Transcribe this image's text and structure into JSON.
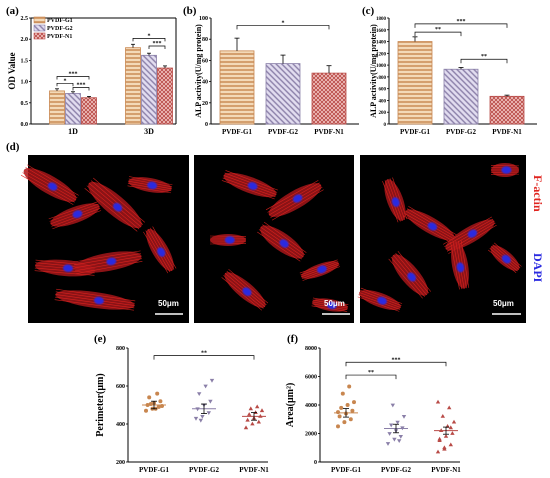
{
  "colors": {
    "g1": "#c8864f",
    "g2": "#8a7fa8",
    "n1": "#b84a46",
    "factin": "#e0241f",
    "dapi": "#2a2ae0"
  },
  "chart_data": [
    {
      "panel": "(a)",
      "type": "bar",
      "categories": [
        "1D",
        "3D"
      ],
      "series": [
        {
          "name": "PVDF-G1",
          "values": [
            0.78,
            1.8
          ],
          "errors": [
            0.05,
            0.08
          ]
        },
        {
          "name": "PVDF-G2",
          "values": [
            0.72,
            1.62
          ],
          "errors": [
            0.04,
            0.05
          ]
        },
        {
          "name": "PVDF-N1",
          "values": [
            0.62,
            1.32
          ],
          "errors": [
            0.03,
            0.05
          ]
        }
      ],
      "ylabel": "OD Value",
      "ylim": [
        0,
        2.5
      ],
      "yticks": [
        "0.0",
        "0.5",
        "1.0",
        "1.5",
        "2.0",
        "2.5"
      ],
      "legend": "top-left",
      "significance": [
        {
          "day": "1D",
          "pair": [
            "PVDF-G1",
            "PVDF-N1"
          ],
          "label": "***"
        },
        {
          "day": "1D",
          "pair": [
            "PVDF-G1",
            "PVDF-G2"
          ],
          "label": "*"
        },
        {
          "day": "1D",
          "pair": [
            "PVDF-G2",
            "PVDF-N1"
          ],
          "label": "***"
        },
        {
          "day": "3D",
          "pair": [
            "PVDF-G1",
            "PVDF-N1"
          ],
          "label": "*"
        },
        {
          "day": "3D",
          "pair": [
            "PVDF-G2",
            "PVDF-N1"
          ],
          "label": "***"
        }
      ]
    },
    {
      "panel": "(b)",
      "type": "bar",
      "categories": [
        "PVDF-G1",
        "PVDF-G2",
        "PVDF-N1"
      ],
      "values": [
        69,
        57,
        48
      ],
      "errors": [
        12,
        8,
        7
      ],
      "ylabel": "ALP activity(U/mg protein)",
      "ylim": [
        0,
        100
      ],
      "yticks": [
        "0",
        "20",
        "40",
        "60",
        "80",
        "100"
      ],
      "significance": [
        {
          "pair": [
            "PVDF-G1",
            "PVDF-N1"
          ],
          "label": "*"
        }
      ]
    },
    {
      "panel": "(c)",
      "type": "bar",
      "categories": [
        "PVDF-G1",
        "PVDF-G2",
        "PVDF-N1"
      ],
      "values": [
        1400,
        930,
        470
      ],
      "errors": [
        80,
        30,
        20
      ],
      "ylabel": "ALP activity(U/mg protein)",
      "ylim": [
        0,
        1800
      ],
      "yticks": [
        "0",
        "200",
        "400",
        "600",
        "800",
        "1000",
        "1200",
        "1400",
        "1600",
        "1800"
      ],
      "significance": [
        {
          "pair": [
            "PVDF-G1",
            "PVDF-N1"
          ],
          "label": "***"
        },
        {
          "pair": [
            "PVDF-G1",
            "PVDF-G2"
          ],
          "label": "**"
        },
        {
          "pair": [
            "PVDF-G2",
            "PVDF-N1"
          ],
          "label": "**"
        }
      ]
    },
    {
      "panel": "(e)",
      "type": "scatter",
      "categories": [
        "PVDF-G1",
        "PVDF-G2",
        "PVDF-N1"
      ],
      "means": [
        500,
        480,
        440
      ],
      "sem": [
        20,
        25,
        20
      ],
      "points": [
        [
          470,
          480,
          490,
          500,
          510,
          520,
          540,
          480,
          495,
          505,
          560
        ],
        [
          430,
          440,
          460,
          480,
          500,
          520,
          560,
          600,
          630,
          420
        ],
        [
          380,
          400,
          410,
          420,
          430,
          440,
          450,
          460,
          470,
          480,
          490
        ]
      ],
      "ylabel": "Perimeter(μm)",
      "ylim": [
        200,
        800
      ],
      "yticks": [
        "200",
        "400",
        "600",
        "800"
      ],
      "significance": [
        {
          "pair": [
            "PVDF-G1",
            "PVDF-N1"
          ],
          "label": "**"
        }
      ]
    },
    {
      "panel": "(f)",
      "type": "scatter",
      "categories": [
        "PVDF-G1",
        "PVDF-G2",
        "PVDF-N1"
      ],
      "means": [
        3450,
        2350,
        2200
      ],
      "sem": [
        300,
        300,
        250
      ],
      "points": [
        [
          2500,
          2800,
          3000,
          3200,
          3400,
          3600,
          3800,
          4000,
          4200,
          4800,
          5300,
          3500
        ],
        [
          1300,
          1600,
          1800,
          2000,
          2200,
          2400,
          2600,
          2800,
          3200,
          4000,
          1500
        ],
        [
          700,
          900,
          1200,
          1500,
          1800,
          2000,
          2200,
          2500,
          2800,
          3200,
          3800,
          4200,
          1000,
          2400,
          1600
        ]
      ],
      "ylabel": "Area(μm²)",
      "ylim": [
        0,
        8000
      ],
      "yticks": [
        "0",
        "2000",
        "4000",
        "6000",
        "8000"
      ],
      "significance": [
        {
          "pair": [
            "PVDF-G1",
            "PVDF-G2"
          ],
          "label": "**"
        },
        {
          "pair": [
            "PVDF-G1",
            "PVDF-N1"
          ],
          "label": "***"
        }
      ]
    }
  ],
  "panels": {
    "a": "(a)",
    "b": "(b)",
    "c": "(c)",
    "d": "(d)",
    "e": "(e)",
    "f": "(f)"
  },
  "micrograph": {
    "scalebar": "50μm",
    "factin_label": "F-actin",
    "dapi_label": "DAPI"
  }
}
